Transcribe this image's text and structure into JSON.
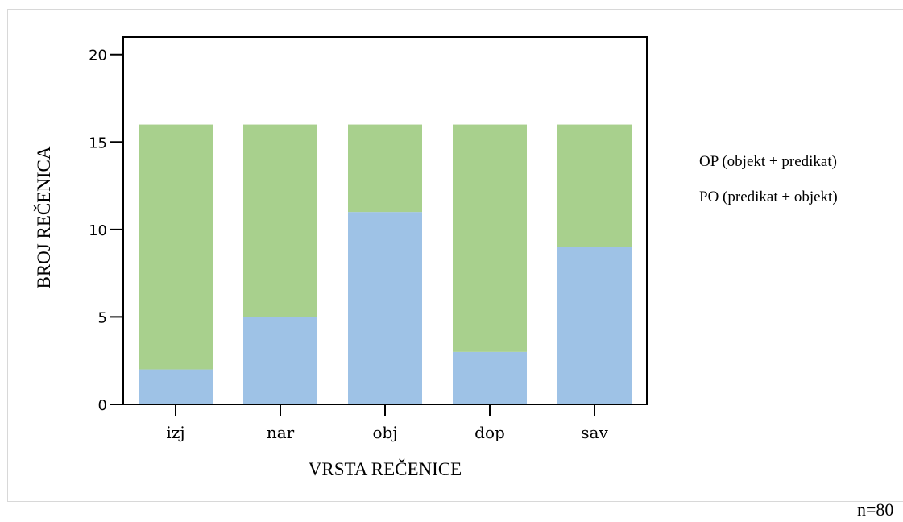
{
  "chart_data": {
    "type": "bar",
    "stacked": true,
    "categories": [
      "izj",
      "nar",
      "obj",
      "dop",
      "sav"
    ],
    "series": [
      {
        "name": "",
        "color": "#9ec2e6",
        "values": [
          2,
          5,
          11,
          3,
          9
        ]
      },
      {
        "name": "",
        "color": "#a8d08d",
        "values": [
          14,
          11,
          5,
          13,
          7
        ]
      }
    ],
    "yticks": [
      0,
      5,
      10,
      15,
      20
    ],
    "ylim": [
      0,
      21
    ],
    "xlabel": "VRSTA REČENICE",
    "ylabel": "BROJ REČENICA",
    "grid": false
  },
  "legend": {
    "items": [
      "OP (objekt + predikat)",
      "PO (predikat + objekt)"
    ]
  },
  "note": "n=80"
}
